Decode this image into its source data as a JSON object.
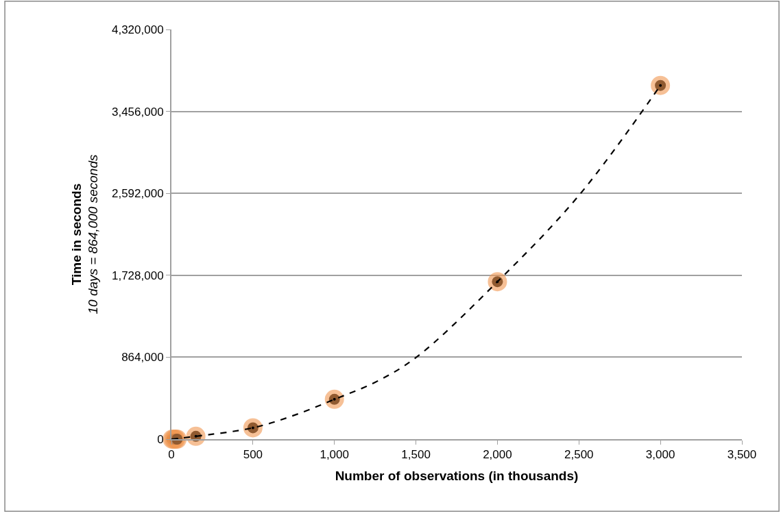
{
  "chart_data": {
    "type": "scatter",
    "xlabel": "Number of observations (in thousands)",
    "ylabel": "Time in seconds\n10 days = 864,000 seconds",
    "series": [
      {
        "color": "#000000",
        "marker": "circle",
        "x": [
          5,
          15,
          25,
          35,
          150,
          500,
          1000,
          2000,
          3000
        ],
        "values": [
          0,
          0,
          0,
          0,
          30000,
          120000,
          420000,
          1660000,
          3730000
        ]
      },
      {
        "type": "line",
        "color": "#000000",
        "line_style": "dashed",
        "marker": "none",
        "x": [
          0,
          150,
          500,
          750,
          1000,
          1250,
          1500,
          2000,
          2500,
          3000
        ],
        "values": [
          0,
          30000,
          120000,
          250000,
          420000,
          600000,
          860000,
          1660000,
          2570000,
          3730000
        ]
      }
    ],
    "xlim": [
      0,
      3500
    ],
    "xticks": [
      0,
      {
        "value": 500,
        "label": "500"
      },
      {
        "value": 1000,
        "label": "1,000"
      },
      {
        "value": 1500,
        "label": "1,500"
      },
      {
        "value": 2000,
        "label": "2,000"
      },
      {
        "value": 2500,
        "label": "2,500"
      },
      {
        "value": 3000,
        "label": "3,000"
      },
      {
        "value": 3500,
        "label": "3,500"
      }
    ],
    "ylim": [
      0,
      4320000
    ],
    "yticks": [
      0,
      {
        "value": 864000,
        "label": "864,000"
      },
      {
        "value": 1728000,
        "label": "1,728,000"
      },
      {
        "value": 2592000,
        "label": "2,592,000"
      },
      {
        "value": 3456000,
        "label": "3,456,000"
      },
      {
        "value": 4320000,
        "label": "4,320,000"
      }
    ],
    "grid": "y"
  }
}
